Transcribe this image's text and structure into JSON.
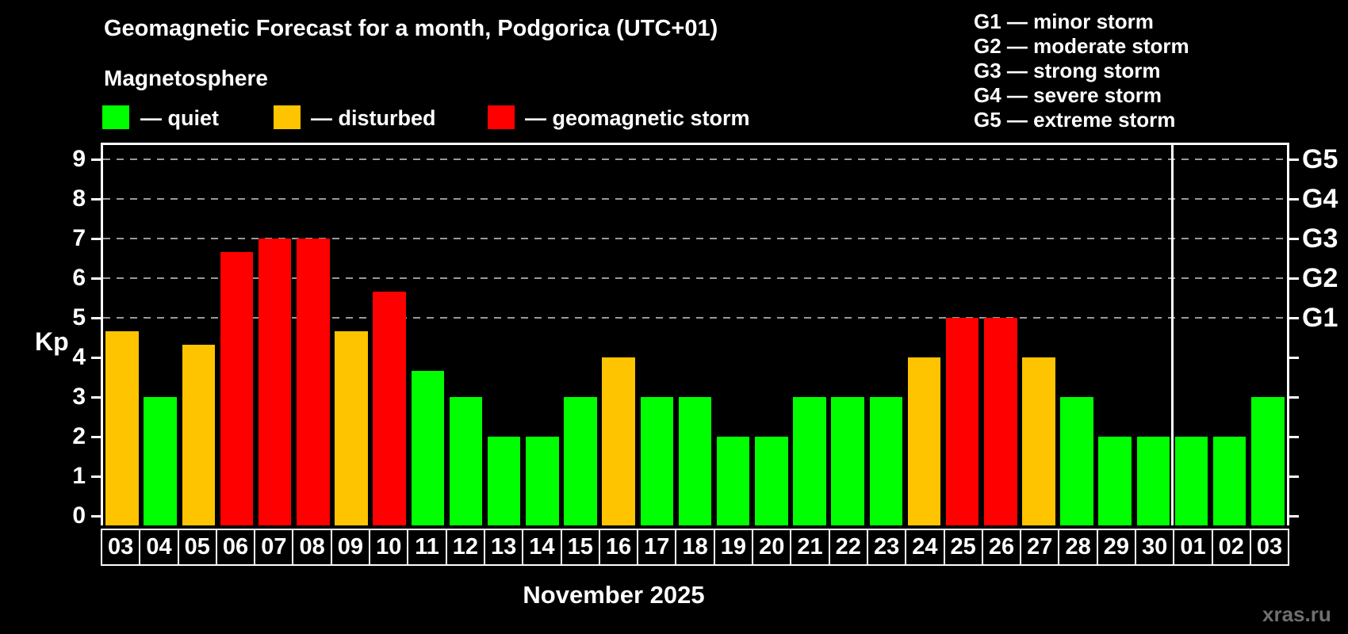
{
  "header": {
    "title": "Geomagnetic Forecast for a month, Podgorica (UTC+01)",
    "subtitle": "Magnetosphere"
  },
  "legend": {
    "items": [
      {
        "key": "quiet",
        "label": "— quiet",
        "color": "#00ff00"
      },
      {
        "key": "disturbed",
        "label": "— disturbed",
        "color": "#ffc400"
      },
      {
        "key": "storm",
        "label": "— geomagnetic storm",
        "color": "#ff0000"
      }
    ]
  },
  "g_scale_legend": {
    "lines": [
      "G1 — minor storm",
      "G2 — moderate storm",
      "G3 — strong storm",
      "G4 — severe storm",
      "G5 — extreme storm"
    ]
  },
  "watermark": "xras.ru",
  "chart_data": {
    "type": "bar",
    "title": "Geomagnetic Forecast for a month, Podgorica (UTC+01)",
    "xlabel": "November 2025",
    "ylabel": "Kp",
    "ylim": [
      0,
      9
    ],
    "y_ticks": [
      0,
      1,
      2,
      3,
      4,
      5,
      6,
      7,
      8,
      9
    ],
    "gridline_levels": [
      5,
      6,
      7,
      8,
      9
    ],
    "right_axis_labels": [
      {
        "level": 5,
        "label": "G1"
      },
      {
        "level": 6,
        "label": "G2"
      },
      {
        "level": 7,
        "label": "G3"
      },
      {
        "level": 8,
        "label": "G4"
      },
      {
        "level": 9,
        "label": "G5"
      }
    ],
    "status_colors": {
      "quiet": "#00ff00",
      "disturbed": "#ffc400",
      "storm": "#ff0000"
    },
    "month_separator_after_index": 27,
    "categories": [
      "03",
      "04",
      "05",
      "06",
      "07",
      "08",
      "09",
      "10",
      "11",
      "12",
      "13",
      "14",
      "15",
      "16",
      "17",
      "18",
      "19",
      "20",
      "21",
      "22",
      "23",
      "24",
      "25",
      "26",
      "27",
      "28",
      "29",
      "30",
      "01",
      "02",
      "03"
    ],
    "values": [
      4.67,
      3,
      4.33,
      6.67,
      7,
      7,
      4.67,
      5.67,
      3.67,
      3,
      2,
      2,
      3,
      4,
      3,
      3,
      2,
      2,
      3,
      3,
      3,
      4,
      5,
      5,
      4,
      3,
      2,
      2,
      2,
      2,
      3
    ],
    "statuses": [
      "disturbed",
      "quiet",
      "disturbed",
      "storm",
      "storm",
      "storm",
      "disturbed",
      "storm",
      "quiet",
      "quiet",
      "quiet",
      "quiet",
      "quiet",
      "disturbed",
      "quiet",
      "quiet",
      "quiet",
      "quiet",
      "quiet",
      "quiet",
      "quiet",
      "disturbed",
      "storm",
      "storm",
      "disturbed",
      "quiet",
      "quiet",
      "quiet",
      "quiet",
      "quiet",
      "quiet"
    ]
  }
}
